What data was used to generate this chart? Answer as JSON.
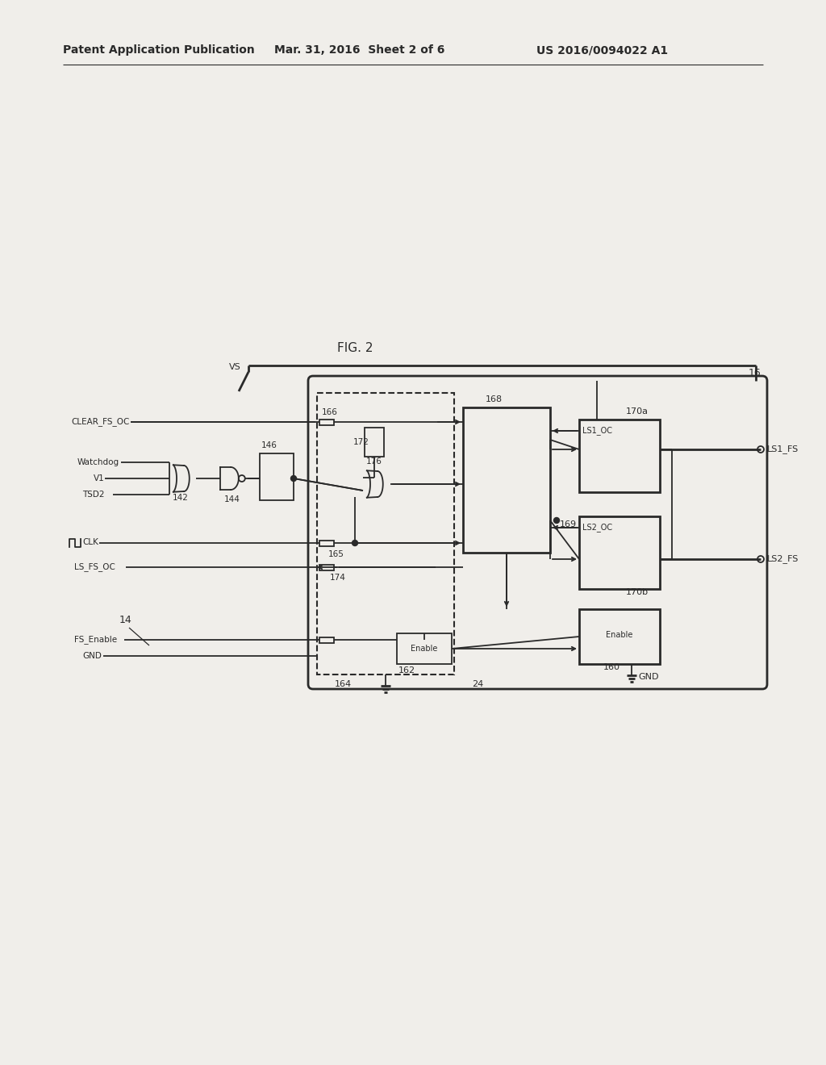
{
  "bg_color": "#f0eeea",
  "line_color": "#2a2a2a",
  "header_left": "Patent Application Publication",
  "header_center": "Mar. 31, 2016  Sheet 2 of 6",
  "header_right": "US 2016/0094022 A1",
  "fig_label": "FIG. 2",
  "labels": {
    "VS": "VS",
    "ref16": "16",
    "ref14": "14",
    "ref166": "166",
    "ref146": "146",
    "ref144": "144",
    "ref142": "142",
    "ref165": "165",
    "ref168": "168",
    "ref169": "169",
    "ref170a": "170a",
    "ref170b": "170b",
    "ref160": "160",
    "ref162": "162",
    "ref172": "172",
    "ref174": "174",
    "ref176": "176",
    "ref164": "164",
    "ref24": "24",
    "CLEAR_FS_OC": "CLEAR_FS_OC",
    "Watchdog": "Watchdog",
    "V1": "V1",
    "TSD2": "TSD2",
    "CLK": "CLK",
    "LS_FS_OC": "LS_FS_OC",
    "FS_Enable": "FS_Enable",
    "GND": "GND",
    "LS1_OC": "LS1_OC",
    "LS2_OC": "LS2_OC",
    "Enable": "Enable",
    "LS1_FS": "LS1_FS",
    "LS2_FS": "LS2_FS"
  }
}
